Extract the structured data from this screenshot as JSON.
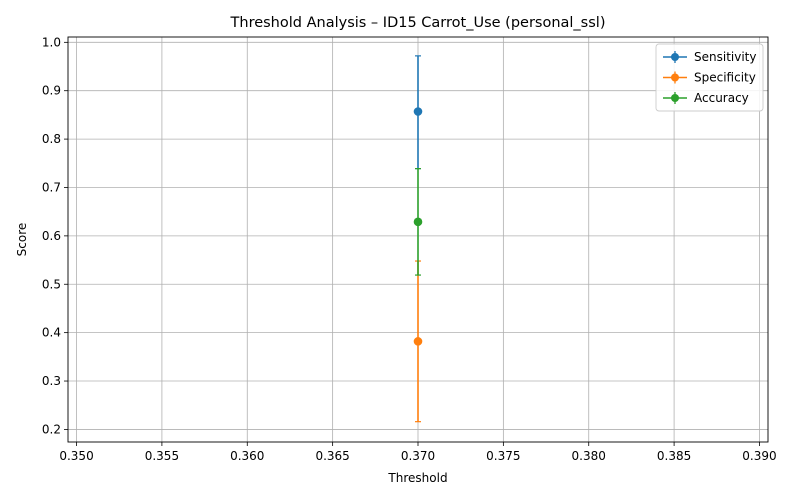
{
  "chart_data": {
    "type": "scatter",
    "title": "Threshold Analysis – ID15 Carrot_Use (personal_ssl)",
    "xlabel": "Threshold",
    "ylabel": "Score",
    "xlim": [
      0.3495,
      0.3905
    ],
    "ylim": [
      0.174,
      1.011
    ],
    "xticks": [
      "0.350",
      "0.355",
      "0.360",
      "0.365",
      "0.370",
      "0.375",
      "0.380",
      "0.385",
      "0.390"
    ],
    "yticks": [
      "0.2",
      "0.3",
      "0.4",
      "0.5",
      "0.6",
      "0.7",
      "0.8",
      "0.9",
      "1.0"
    ],
    "grid": true,
    "legend_position": "top-right",
    "series": [
      {
        "name": "Sensitivity",
        "color": "#1f77b4",
        "x": [
          0.37
        ],
        "y": [
          0.857
        ],
        "yerr_low": [
          0.739
        ],
        "yerr_high": [
          0.972
        ]
      },
      {
        "name": "Specificity",
        "color": "#ff7f0e",
        "x": [
          0.37
        ],
        "y": [
          0.382
        ],
        "yerr_low": [
          0.216
        ],
        "yerr_high": [
          0.548
        ]
      },
      {
        "name": "Accuracy",
        "color": "#2ca02c",
        "x": [
          0.37
        ],
        "y": [
          0.629
        ],
        "yerr_low": [
          0.519
        ],
        "yerr_high": [
          0.739
        ]
      }
    ]
  }
}
